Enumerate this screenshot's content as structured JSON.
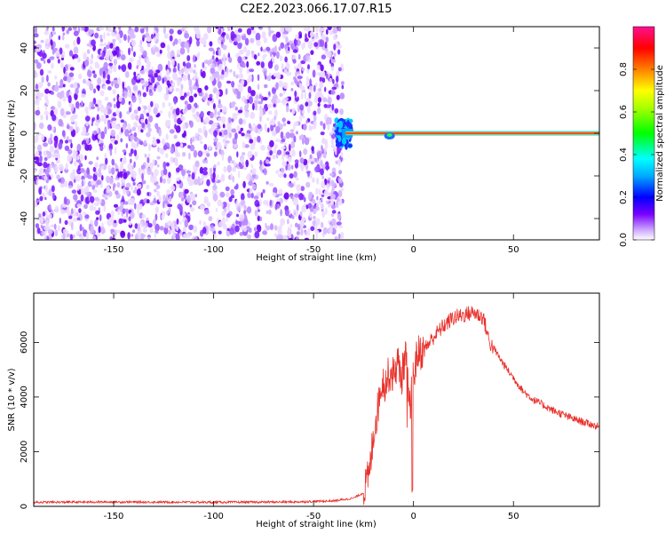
{
  "title": "C2E2.2023.066.17.07.R15",
  "chart_data": [
    {
      "type": "heatmap",
      "xlabel": "Height of straight line (km)",
      "ylabel": "Frequency (Hz)",
      "xlim": [
        -190,
        93
      ],
      "ylim": [
        -50,
        50
      ],
      "xticks": [
        -150,
        -100,
        -50,
        0,
        50
      ],
      "yticks": [
        -40,
        -20,
        0,
        20,
        40
      ],
      "noise_region_x": [
        -190,
        -38
      ],
      "signal_line": {
        "x": [
          -34,
          93
        ],
        "frequency": 0,
        "note": "narrow high-amplitude band near 0 Hz"
      },
      "colorbar": {
        "label": "Normalized spectral amplitude",
        "range": [
          0,
          1
        ],
        "ticks": [
          0.0,
          0.2,
          0.4,
          0.6,
          0.8
        ],
        "colormap": [
          "#ffffff",
          "#c9a0ff",
          "#7a00ff",
          "#0000ff",
          "#00ffff",
          "#00ff00",
          "#ffff00",
          "#ff8000",
          "#ff0000",
          "#ff1090"
        ]
      }
    },
    {
      "type": "line",
      "xlabel": "Height of straight line (km)",
      "ylabel": "SNR (10 * v/v)",
      "xlim": [
        -190,
        93
      ],
      "ylim": [
        0,
        7800
      ],
      "xticks": [
        -150,
        -100,
        -50,
        0,
        50
      ],
      "yticks": [
        0,
        2000,
        4000,
        6000
      ],
      "color": "#e8302a",
      "series": [
        {
          "x": [
            -190,
            -150,
            -100,
            -60,
            -40,
            -30,
            -25,
            -22,
            -20,
            -18,
            -16,
            -14,
            -12,
            -10,
            -8,
            -6,
            -4,
            -2,
            0,
            2,
            5,
            10,
            15,
            20,
            25,
            30,
            35,
            38,
            40,
            45,
            50,
            55,
            60,
            70,
            80,
            93
          ],
          "y": [
            150,
            160,
            150,
            160,
            200,
            300,
            500,
            1200,
            2700,
            3500,
            4600,
            4500,
            4900,
            4800,
            5300,
            4700,
            5600,
            3500,
            4800,
            5600,
            5700,
            6200,
            6600,
            6900,
            7000,
            7100,
            6900,
            6000,
            5800,
            5200,
            4700,
            4200,
            3900,
            3500,
            3200,
            2900
          ]
        }
      ]
    }
  ]
}
